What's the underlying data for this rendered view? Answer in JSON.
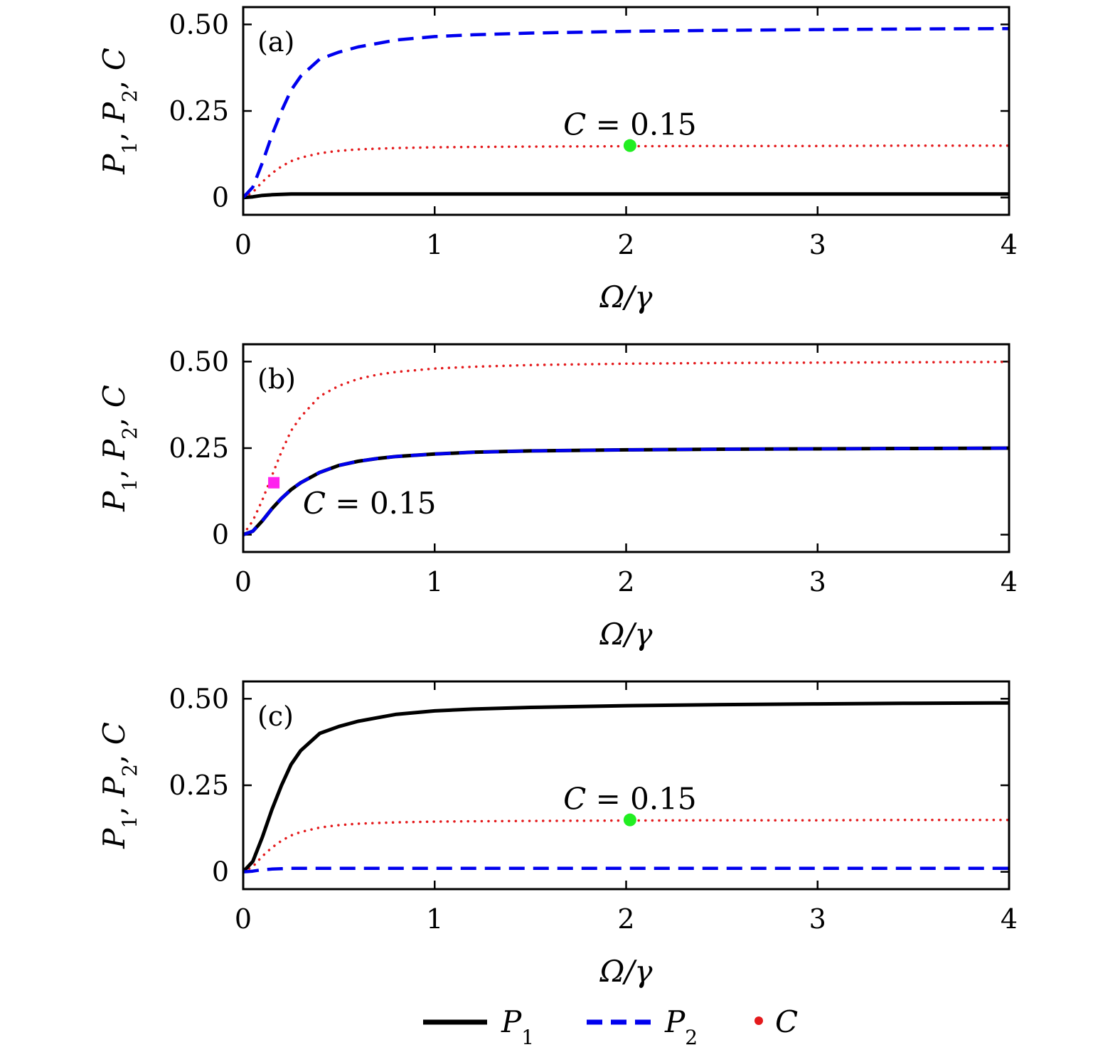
{
  "legend": [
    {
      "label": "P1",
      "main": "P",
      "sub": "1",
      "style": "solid",
      "color": "#000000"
    },
    {
      "label": "P2",
      "main": "P",
      "sub": "2",
      "style": "dashed",
      "color": "#0000ee"
    },
    {
      "label": "C",
      "main": "C",
      "sub": "",
      "style": "dotted",
      "color": "#e41a1c"
    }
  ],
  "colors": {
    "P1": "#000000",
    "P2": "#0000ee",
    "C": "#e41a1c",
    "green_marker": "#22ee22",
    "magenta_marker": "#ff22ee"
  },
  "chart_data": [
    {
      "type": "line",
      "panel": "(a)",
      "xlabel": "Ω/γ",
      "ylabel": "P1, P2, C",
      "xlim": [
        0,
        4
      ],
      "ylim": [
        -0.05,
        0.55
      ],
      "xticks": [
        "0",
        "1",
        "2",
        "3",
        "4"
      ],
      "yticks": [
        "0",
        "0.25",
        "0.50"
      ],
      "x": [
        0,
        0.05,
        0.1,
        0.15,
        0.2,
        0.25,
        0.3,
        0.4,
        0.5,
        0.6,
        0.7,
        0.8,
        1.0,
        1.2,
        1.5,
        2.0,
        2.5,
        3.0,
        3.5,
        4.0
      ],
      "series": [
        {
          "name": "P1",
          "values": [
            0,
            0.002,
            0.006,
            0.008,
            0.009,
            0.01,
            0.01,
            0.01,
            0.01,
            0.01,
            0.01,
            0.01,
            0.01,
            0.01,
            0.01,
            0.01,
            0.01,
            0.01,
            0.01,
            0.01
          ]
        },
        {
          "name": "P2",
          "values": [
            0,
            0.03,
            0.1,
            0.18,
            0.25,
            0.31,
            0.35,
            0.4,
            0.42,
            0.435,
            0.445,
            0.455,
            0.465,
            0.47,
            0.475,
            0.48,
            0.483,
            0.485,
            0.487,
            0.488
          ]
        },
        {
          "name": "C",
          "values": [
            0,
            0.015,
            0.045,
            0.07,
            0.09,
            0.105,
            0.115,
            0.128,
            0.135,
            0.139,
            0.141,
            0.143,
            0.145,
            0.146,
            0.147,
            0.148,
            0.149,
            0.149,
            0.15,
            0.15
          ]
        }
      ],
      "marker": {
        "x": 2.02,
        "y": 0.15,
        "shape": "circle",
        "color": "green"
      },
      "annotation": {
        "text": "C = 0.15",
        "x": 2.02,
        "y": 0.21
      }
    },
    {
      "type": "line",
      "panel": "(b)",
      "xlabel": "Ω/γ",
      "ylabel": "P1, P2, C",
      "xlim": [
        0,
        4
      ],
      "ylim": [
        -0.05,
        0.55
      ],
      "xticks": [
        "0",
        "1",
        "2",
        "3",
        "4"
      ],
      "yticks": [
        "0",
        "0.25",
        "0.50"
      ],
      "x": [
        0,
        0.05,
        0.1,
        0.15,
        0.2,
        0.25,
        0.3,
        0.4,
        0.5,
        0.6,
        0.7,
        0.8,
        1.0,
        1.2,
        1.5,
        2.0,
        2.5,
        3.0,
        3.5,
        4.0
      ],
      "series": [
        {
          "name": "P1",
          "values": [
            0,
            0.01,
            0.04,
            0.075,
            0.105,
            0.13,
            0.15,
            0.18,
            0.2,
            0.212,
            0.22,
            0.226,
            0.233,
            0.238,
            0.242,
            0.245,
            0.247,
            0.248,
            0.249,
            0.25
          ]
        },
        {
          "name": "P2",
          "values": [
            0,
            0.01,
            0.04,
            0.075,
            0.105,
            0.13,
            0.15,
            0.18,
            0.2,
            0.212,
            0.22,
            0.226,
            0.233,
            0.238,
            0.242,
            0.245,
            0.247,
            0.248,
            0.249,
            0.25
          ]
        },
        {
          "name": "C",
          "values": [
            0,
            0.04,
            0.1,
            0.17,
            0.24,
            0.3,
            0.34,
            0.4,
            0.43,
            0.45,
            0.462,
            0.47,
            0.48,
            0.485,
            0.49,
            0.494,
            0.496,
            0.497,
            0.498,
            0.499
          ]
        }
      ],
      "marker": {
        "x": 0.16,
        "y": 0.15,
        "shape": "square",
        "color": "magenta"
      },
      "annotation": {
        "text": "C = 0.15",
        "x": 0.66,
        "y": 0.09
      }
    },
    {
      "type": "line",
      "panel": "(c)",
      "xlabel": "Ω/γ",
      "ylabel": "P1, P2, C",
      "xlim": [
        0,
        4
      ],
      "ylim": [
        -0.05,
        0.55
      ],
      "xticks": [
        "0",
        "1",
        "2",
        "3",
        "4"
      ],
      "yticks": [
        "0",
        "0.25",
        "0.50"
      ],
      "x": [
        0,
        0.05,
        0.1,
        0.15,
        0.2,
        0.25,
        0.3,
        0.4,
        0.5,
        0.6,
        0.7,
        0.8,
        1.0,
        1.2,
        1.5,
        2.0,
        2.5,
        3.0,
        3.5,
        4.0
      ],
      "series": [
        {
          "name": "P1",
          "values": [
            0,
            0.03,
            0.1,
            0.18,
            0.25,
            0.31,
            0.35,
            0.4,
            0.42,
            0.435,
            0.445,
            0.455,
            0.465,
            0.47,
            0.475,
            0.48,
            0.483,
            0.485,
            0.487,
            0.488
          ]
        },
        {
          "name": "P2",
          "values": [
            0,
            0.002,
            0.006,
            0.008,
            0.009,
            0.01,
            0.01,
            0.01,
            0.01,
            0.01,
            0.01,
            0.01,
            0.01,
            0.01,
            0.01,
            0.01,
            0.01,
            0.01,
            0.01,
            0.01
          ]
        },
        {
          "name": "C",
          "values": [
            0,
            0.015,
            0.045,
            0.07,
            0.09,
            0.105,
            0.115,
            0.128,
            0.135,
            0.139,
            0.141,
            0.143,
            0.145,
            0.146,
            0.147,
            0.148,
            0.149,
            0.149,
            0.15,
            0.15
          ]
        }
      ],
      "marker": {
        "x": 2.02,
        "y": 0.15,
        "shape": "circle",
        "color": "green"
      },
      "annotation": {
        "text": "C = 0.15",
        "x": 2.02,
        "y": 0.21
      }
    }
  ]
}
